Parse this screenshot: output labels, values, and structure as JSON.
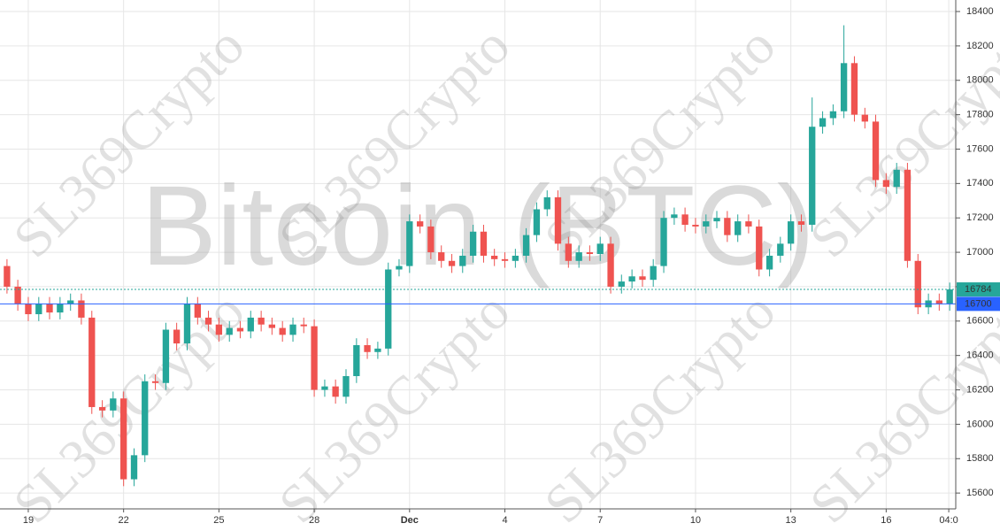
{
  "chart_data": {
    "type": "candlestick",
    "watermark_title": "Bitcoin (BTC)",
    "watermark": "SL369Crypto",
    "x": [
      0.33,
      0.67,
      1,
      1.33,
      1.67,
      2,
      2.33,
      2.67,
      3,
      3.33,
      3.67,
      4,
      4.33,
      4.67,
      5,
      5.33,
      5.67,
      6,
      6.33,
      6.67,
      7,
      7.33,
      7.67,
      8,
      8.33,
      8.67,
      9,
      9.33,
      9.67,
      10,
      10.33,
      10.67,
      11,
      11.33,
      11.67,
      12,
      12.33,
      12.67,
      13,
      13.33,
      13.67,
      14,
      14.33,
      14.67,
      15,
      15.33,
      15.67,
      16,
      16.33,
      16.67,
      17,
      17.33,
      17.67,
      18,
      18.33,
      18.67,
      19,
      19.33,
      19.67,
      20,
      20.33,
      20.67,
      21,
      21.33,
      21.67,
      22,
      22.33,
      22.67,
      23,
      23.33,
      23.67,
      24,
      24.33,
      24.67,
      25,
      25.33,
      25.67,
      26,
      26.33,
      26.67,
      27,
      27.33,
      27.67,
      28,
      28.33,
      28.67,
      29,
      29.33,
      29.67,
      30
    ],
    "open": [
      16920,
      16800,
      16700,
      16640,
      16700,
      16650,
      16700,
      16720,
      16620,
      16100,
      16080,
      16150,
      15680,
      15820,
      16250,
      16240,
      16550,
      16470,
      16700,
      16620,
      16580,
      16520,
      16560,
      16540,
      16620,
      16580,
      16560,
      16520,
      16580,
      16570,
      16200,
      16220,
      16160,
      16280,
      16460,
      16420,
      16440,
      16900,
      16920,
      17180,
      17150,
      17000,
      16950,
      16920,
      16980,
      17120,
      16980,
      16960,
      16950,
      16980,
      17100,
      17250,
      17320,
      17050,
      16950,
      17000,
      16990,
      17050,
      16800,
      16830,
      16860,
      16840,
      16920,
      17200,
      17220,
      17160,
      17150,
      17180,
      17200,
      17100,
      17180,
      17150,
      16900,
      16980,
      17050,
      17180,
      17160,
      17730,
      17780,
      17820,
      18100,
      17800,
      17760,
      17420,
      17380,
      17480,
      16950,
      16680,
      16720,
      16700
    ],
    "high": [
      16960,
      16840,
      16740,
      16740,
      16740,
      16740,
      16760,
      16760,
      16660,
      16140,
      16190,
      16190,
      15860,
      16290,
      16290,
      16590,
      16590,
      16740,
      16740,
      16660,
      16620,
      16600,
      16600,
      16660,
      16660,
      16620,
      16600,
      16620,
      16620,
      16610,
      16260,
      16260,
      16320,
      16500,
      16500,
      16480,
      16940,
      16960,
      17220,
      17220,
      17190,
      17040,
      16990,
      17020,
      17160,
      17160,
      17020,
      17000,
      17020,
      17140,
      17290,
      17360,
      17360,
      17090,
      17040,
      17040,
      17090,
      17090,
      16870,
      16900,
      16900,
      16960,
      17240,
      17260,
      17260,
      17200,
      17220,
      17240,
      17240,
      17220,
      17220,
      17190,
      17020,
      17090,
      17220,
      17220,
      17900,
      17820,
      17860,
      18320,
      18140,
      17840,
      17800,
      17460,
      17520,
      17520,
      16990,
      16760,
      16760,
      16824
    ],
    "low": [
      16760,
      16660,
      16600,
      16600,
      16610,
      16610,
      16660,
      16580,
      16060,
      16040,
      16040,
      15640,
      15640,
      15780,
      16200,
      16200,
      16430,
      16430,
      16580,
      16540,
      16480,
      16480,
      16500,
      16500,
      16540,
      16520,
      16480,
      16480,
      16530,
      16160,
      16160,
      16120,
      16120,
      16240,
      16380,
      16380,
      16400,
      16860,
      16880,
      17110,
      16960,
      16910,
      16880,
      16880,
      16940,
      16940,
      16920,
      16910,
      16910,
      16940,
      17060,
      17210,
      17010,
      16910,
      16910,
      16950,
      16950,
      16760,
      16760,
      16790,
      16800,
      16800,
      16880,
      17160,
      17120,
      17110,
      17110,
      17140,
      17060,
      17060,
      17110,
      16860,
      16860,
      16940,
      17010,
      17120,
      17120,
      17690,
      17740,
      17780,
      17760,
      17720,
      17380,
      17340,
      17340,
      16910,
      16640,
      16640,
      16660,
      16660
    ],
    "close": [
      16800,
      16700,
      16640,
      16700,
      16650,
      16700,
      16720,
      16620,
      16100,
      16080,
      16150,
      15680,
      15820,
      16250,
      16240,
      16550,
      16470,
      16700,
      16620,
      16580,
      16520,
      16560,
      16540,
      16620,
      16580,
      16560,
      16520,
      16580,
      16570,
      16200,
      16220,
      16160,
      16280,
      16460,
      16420,
      16440,
      16900,
      16920,
      17180,
      17150,
      17000,
      16950,
      16920,
      16980,
      17120,
      16980,
      16960,
      16950,
      16980,
      17100,
      17250,
      17320,
      17050,
      16950,
      17000,
      16990,
      17050,
      16800,
      16830,
      16860,
      16840,
      16920,
      17200,
      17220,
      17160,
      17150,
      17180,
      17200,
      17100,
      17180,
      17150,
      16900,
      16980,
      17050,
      17180,
      17160,
      17730,
      17780,
      17820,
      18100,
      17800,
      17760,
      17420,
      17380,
      17480,
      16950,
      16680,
      16720,
      16700,
      16784
    ],
    "up_color": "#26a69a",
    "down_color": "#ef5350",
    "last_price": 16784,
    "last_price_color": "#26a69a",
    "price_line": 16700,
    "price_line_color": "#2962ff",
    "xlim": [
      0.11,
      30.19
    ],
    "xticks": [
      {
        "value": 1,
        "label": "19"
      },
      {
        "value": 4,
        "label": "22"
      },
      {
        "value": 7,
        "label": "25"
      },
      {
        "value": 10,
        "label": "28"
      },
      {
        "value": 13,
        "label": "Dec"
      },
      {
        "value": 16,
        "label": "4"
      },
      {
        "value": 19,
        "label": "7"
      },
      {
        "value": 22,
        "label": "10"
      },
      {
        "value": 25,
        "label": "13"
      },
      {
        "value": 28,
        "label": "16"
      },
      {
        "value": 29.97,
        "label": "04:0"
      }
    ],
    "ylim": [
      15508,
      18467
    ],
    "yticks": [
      15600,
      15800,
      16000,
      16200,
      16400,
      16600,
      16800,
      17000,
      17200,
      17400,
      17600,
      17800,
      18000,
      18200,
      18400
    ],
    "grid": true
  }
}
